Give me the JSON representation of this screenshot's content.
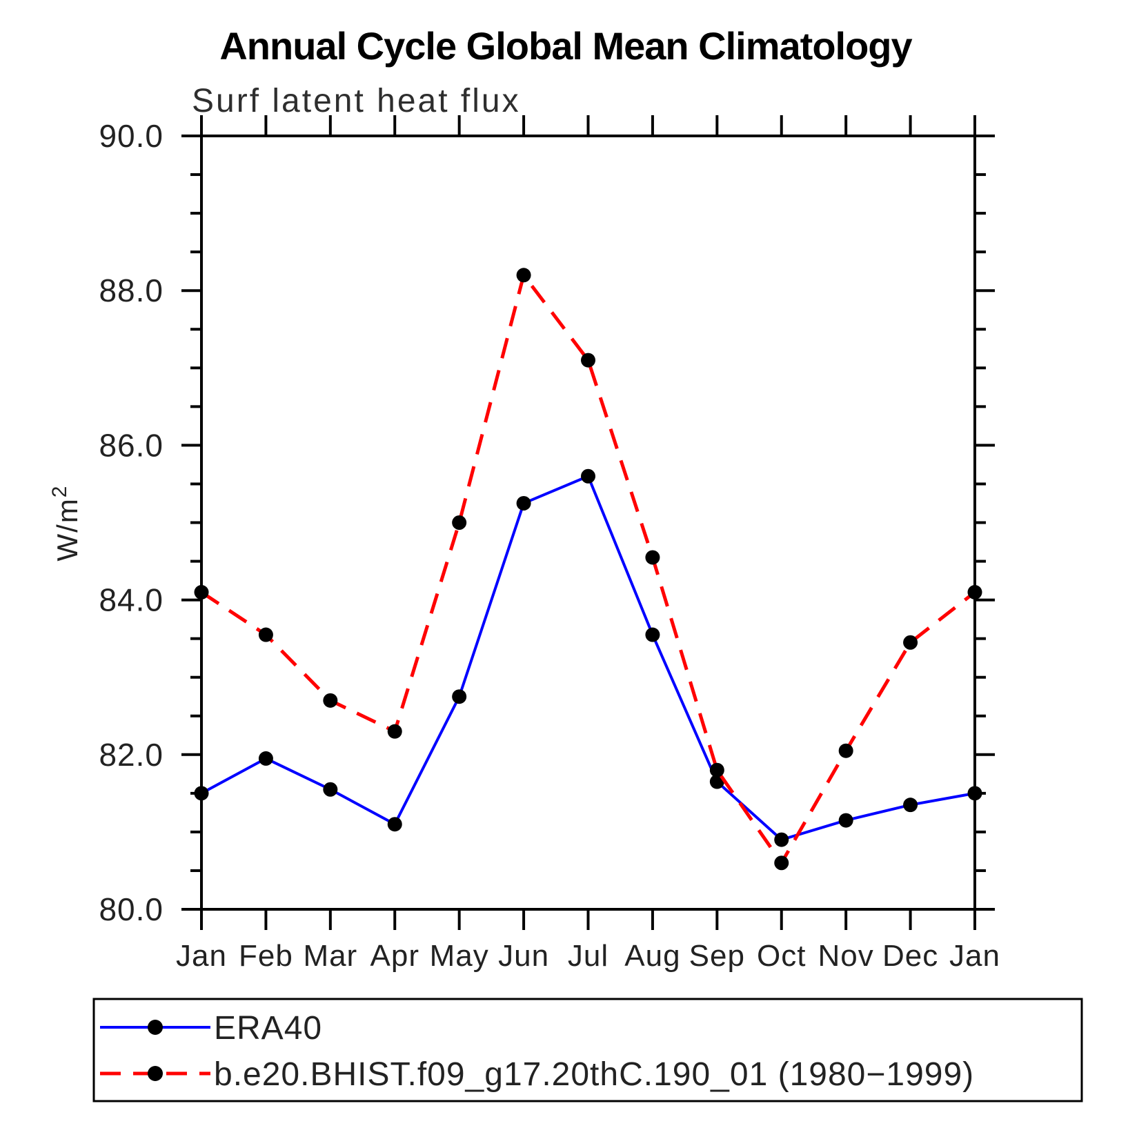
{
  "title": "Annual Cycle Global Mean Climatology",
  "chart_data": {
    "type": "line",
    "title": "Annual Cycle Global Mean Climatology",
    "subtitle": "Surf latent heat flux",
    "ylabel_main": "W/m",
    "ylabel_sup": "2",
    "ylabel": "W/m^2",
    "categories": [
      "Jan",
      "Feb",
      "Mar",
      "Apr",
      "May",
      "Jun",
      "Jul",
      "Aug",
      "Sep",
      "Oct",
      "Nov",
      "Dec",
      "Jan"
    ],
    "ylim": [
      80.0,
      90.0
    ],
    "y_major_tick_interval": 2.0,
    "y_minor_tick_interval": 0.5,
    "y_tick_labels": [
      "90.0",
      "88.0",
      "86.0",
      "84.0",
      "82.0",
      "80.0"
    ],
    "grid": false,
    "legend_position": "bottom",
    "marker_color": "#000000",
    "series": [
      {
        "name": "ERA40",
        "color": "#0000ff",
        "style": "solid",
        "marker": "circle",
        "values": [
          81.5,
          81.95,
          81.55,
          81.1,
          82.75,
          85.25,
          85.6,
          83.55,
          81.65,
          80.9,
          81.15,
          81.35,
          81.5
        ]
      },
      {
        "name": "b.e20.BHIST.f09_g17.20thC.190_01 (1980−1999)",
        "color": "#ff0000",
        "style": "dashed",
        "marker": "circle",
        "values": [
          84.1,
          83.55,
          82.7,
          82.3,
          85.0,
          88.2,
          87.1,
          84.55,
          81.8,
          80.6,
          82.05,
          83.45,
          84.1
        ]
      }
    ]
  }
}
